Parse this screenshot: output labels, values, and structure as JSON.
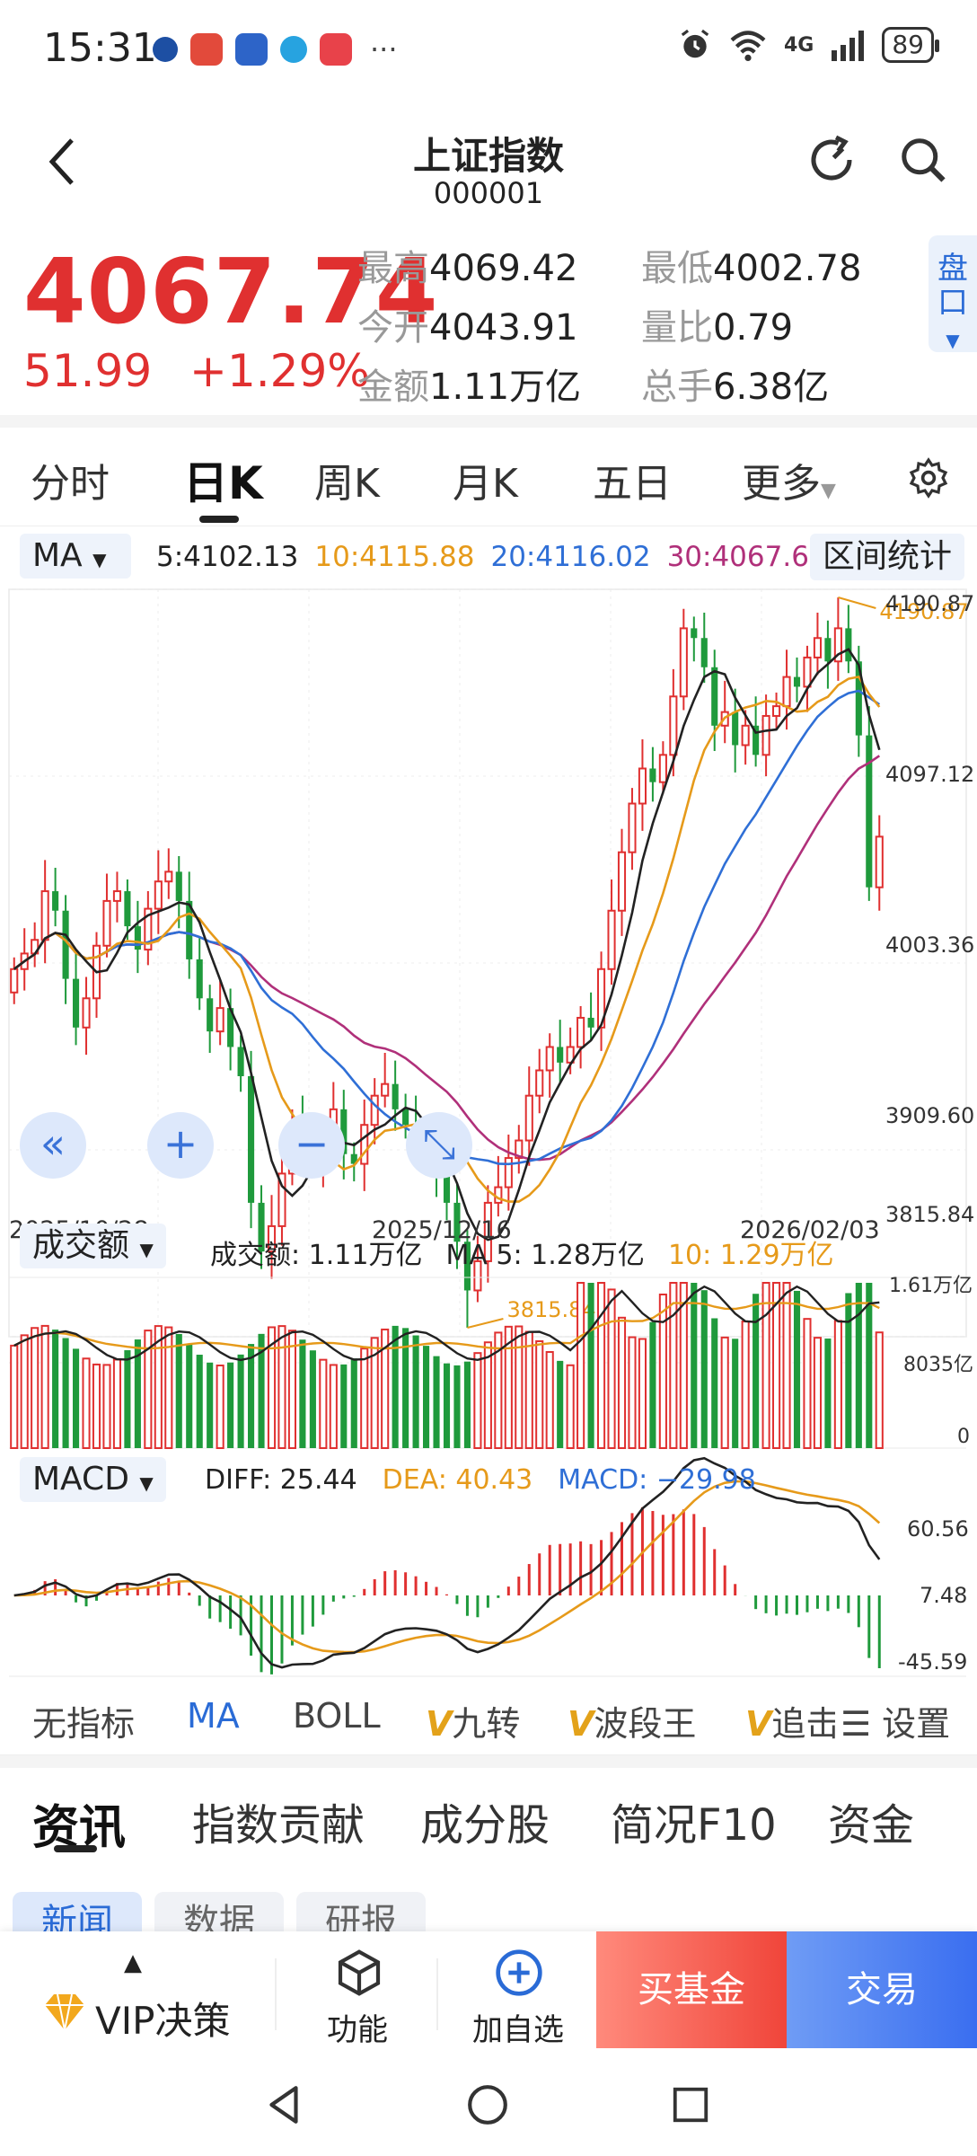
{
  "status_bar": {
    "time": "15:31",
    "network": "4G",
    "battery": "89",
    "dots": "···"
  },
  "header": {
    "title": "上证指数",
    "code": "000001"
  },
  "quote": {
    "price": "4067.74",
    "change": "51.99",
    "change_pct": "+1.29%",
    "high_label": "最高",
    "high": "4069.42",
    "low_label": "最低",
    "low": "4002.78",
    "open_label": "今开",
    "open": "4043.91",
    "ratio_label": "量比",
    "ratio": "0.79",
    "amount_label": "金额",
    "amount": "1.11万亿",
    "turnover_label": "总手",
    "turnover": "6.38亿",
    "pankou_label": "盘口"
  },
  "period_tabs": [
    "分时",
    "日K",
    "周K",
    "月K",
    "五日",
    "更多"
  ],
  "active_period": "日K",
  "ma_panel": {
    "selector": "MA",
    "ma5": "5:4102.13",
    "ma10": "10:4115.88",
    "ma20": "20:4116.02",
    "ma30": "30:4067.61",
    "stat_button": "区间统计"
  },
  "price_axis": [
    "4190.87",
    "4097.12",
    "4003.36",
    "3909.60",
    "3815.84"
  ],
  "date_axis": [
    "2025/10/28",
    "2025/12/16",
    "2026/02/03"
  ],
  "annotations": {
    "max": "4190.87",
    "min": "3815.84"
  },
  "volume_panel": {
    "selector": "成交额",
    "amount": "成交额: 1.11万亿",
    "ma5": "MA 5: 1.28万亿",
    "ma10": "10: 1.29万亿",
    "axis": [
      "1.61万亿",
      "8035亿",
      "0"
    ]
  },
  "macd_panel": {
    "selector": "MACD",
    "diff": "DIFF: 25.44",
    "dea": "DEA: 40.43",
    "macd": "MACD: −29.98",
    "axis": [
      "60.56",
      "7.48",
      "-45.59"
    ]
  },
  "indicator_tabs": {
    "none": "无指标",
    "ma": "MA",
    "boll": "BOLL",
    "jiuzhuan": "九转",
    "boduan": "波段王",
    "zhui": "追击",
    "v": "V",
    "settings": "设置"
  },
  "news_tabs": [
    "资讯",
    "指数贡献",
    "成分股",
    "简况F10",
    "资金"
  ],
  "sub_tabs": [
    "新闻",
    "数据",
    "研报"
  ],
  "bottom_bar": {
    "vip": "VIP决策",
    "func": "功能",
    "add": "加自选",
    "buy": "买基金",
    "trade": "交易"
  },
  "colors": {
    "up": "#e03030",
    "down": "#1f9a3c",
    "ma5": "#222222",
    "ma10": "#e69a1a",
    "ma20": "#2f6fd6",
    "ma30": "#b0307a",
    "accent": "#2a6bd6"
  },
  "chart_data": {
    "type": "candlestick",
    "ohlc_closes": [
      4000,
      4008,
      4015,
      4040,
      4030,
      3995,
      3970,
      3985,
      4012,
      4035,
      4040,
      4022,
      4010,
      4031,
      4045,
      4050,
      4035,
      4005,
      3985,
      3968,
      3980,
      3960,
      3945,
      3880,
      3855,
      3868,
      3895,
      3920,
      3906,
      3900,
      3915,
      3928,
      3905,
      3900,
      3920,
      3935,
      3941,
      3928,
      3920,
      3912,
      3902,
      3896,
      3880,
      3860,
      3835,
      3850,
      3880,
      3888,
      3903,
      3912,
      3935,
      3948,
      3960,
      3952,
      3960,
      3975,
      3970,
      4000,
      4030,
      4060,
      4085,
      4103,
      4096,
      4110,
      4140,
      4175,
      4170,
      4155,
      4125,
      4132,
      4115,
      4125,
      4110,
      4130,
      4135,
      4150,
      4145,
      4160,
      4170,
      4158,
      4175,
      4158,
      4120,
      4042,
      4068
    ],
    "ylim": [
      3815.84,
      4190.87
    ],
    "price_axis_ticks": [
      4190.87,
      4097.12,
      4003.36,
      3909.6,
      3815.84
    ],
    "date_ticks": [
      "2025/10/28",
      "2025/12/16",
      "2026/02/03"
    ],
    "volume_axis_ticks": [
      "1.61万亿",
      "8035亿",
      "0"
    ],
    "macd_axis_ticks": [
      60.56,
      7.48,
      -45.59
    ],
    "ma": {
      "MA5": 4102.13,
      "MA10": 4115.88,
      "MA20": 4116.02,
      "MA30": 4067.61
    },
    "max_label": 4190.87,
    "min_label": 3815.84
  }
}
